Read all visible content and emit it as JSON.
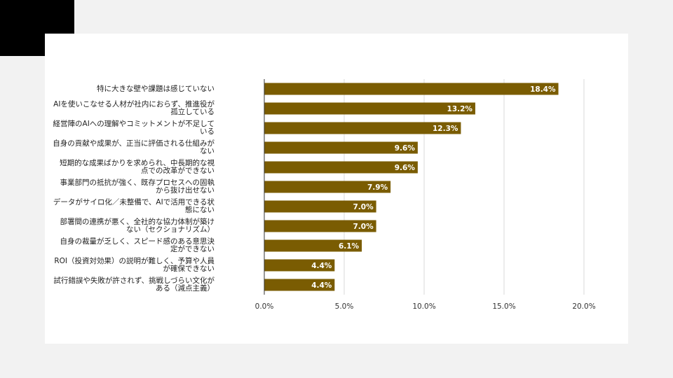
{
  "colors": {
    "bar": "#7a5c02",
    "label_text": "#ffffff",
    "grid": "#d9d9d9",
    "axis": "#333333"
  },
  "chart_data": {
    "type": "bar",
    "orientation": "horizontal",
    "categories": [
      "特に大きな壁や課題は感じていない",
      "AIを使いこなせる人材が社内におらず、推進役が\n孤立している",
      "経営陣のAIへの理解やコミットメントが不足して\nいる",
      "自身の貢献や成果が、正当に評価される仕組みが\nない",
      "短期的な成果ばかりを求められ、中長期的な視\n点での改革ができない",
      "事業部門の抵抗が強く、既存プロセスへの固執\nから抜け出せない",
      "データがサイロ化／未整備で、AIで活用できる状\n態にない",
      "部署間の連携が悪く、全社的な協力体制が築け\nない（セクショナリズム）",
      "自身の裁量が乏しく、スピード感のある意思決\n定ができない",
      "ROI（投資対効果）の説明が難しく、予算や人員\nが確保できない",
      "試行錯誤や失敗が許されず、挑戦しづらい文化が\nある（減点主義）"
    ],
    "values": [
      18.4,
      13.2,
      12.3,
      9.6,
      9.6,
      7.9,
      7.0,
      7.0,
      6.1,
      4.4,
      4.4
    ],
    "value_labels": [
      "18.4%",
      "13.2%",
      "12.3%",
      "9.6%",
      "9.6%",
      "7.9%",
      "7.0%",
      "7.0%",
      "6.1%",
      "4.4%",
      "4.4%"
    ],
    "xlim": [
      0,
      20
    ],
    "x_ticks": [
      0,
      5,
      10,
      15,
      20
    ],
    "x_tick_labels": [
      "0.0%",
      "5.0%",
      "10.0%",
      "15.0%",
      "20.0%"
    ],
    "grid": true,
    "legend": "none"
  }
}
